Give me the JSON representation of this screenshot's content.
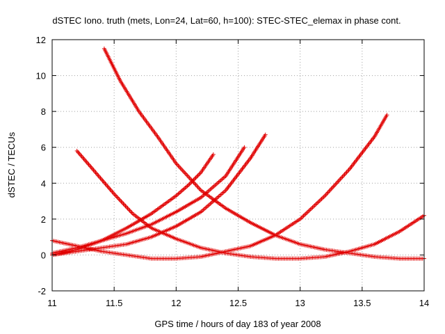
{
  "chart_data": {
    "type": "scatter",
    "title": "dSTEC Iono. truth (mets, Lon=24, Lat=60, h=100): STEC-STEC_elemax in phase cont.",
    "xlabel": "GPS time / hours of day 183 of year 2008",
    "ylabel": "dSTEC  / TECUs",
    "xlim": [
      11,
      14
    ],
    "ylim": [
      -2,
      12
    ],
    "xticks": [
      11,
      11.5,
      12,
      12.5,
      13,
      13.5,
      14
    ],
    "xtick_labels": [
      "11",
      "11.5",
      "12",
      "12.5",
      "13",
      "13.5",
      "14"
    ],
    "yticks": [
      -2,
      0,
      2,
      4,
      6,
      8,
      10,
      12
    ],
    "ytick_labels": [
      "-2",
      "0",
      "2",
      "4",
      "6",
      "8",
      "10",
      "12"
    ],
    "grid": true,
    "marker": "plus",
    "color": "#e00000",
    "series": [
      {
        "x": [
          11.42,
          11.55,
          11.7,
          11.85,
          12.0,
          12.2,
          12.4,
          12.6,
          12.8,
          13.0,
          13.2,
          13.4,
          13.6,
          13.8,
          14.0
        ],
        "y": [
          11.5,
          9.7,
          8.0,
          6.6,
          5.1,
          3.6,
          2.6,
          1.8,
          1.1,
          0.6,
          0.3,
          0.1,
          -0.1,
          -0.2,
          -0.2
        ]
      },
      {
        "x": [
          11.2,
          11.35,
          11.5,
          11.65,
          11.8,
          12.0,
          12.2,
          12.4,
          12.6,
          12.8,
          13.0,
          13.2,
          13.4,
          13.6,
          13.8,
          14.0
        ],
        "y": [
          5.8,
          4.6,
          3.4,
          2.3,
          1.5,
          0.9,
          0.4,
          0.1,
          -0.1,
          -0.2,
          -0.2,
          -0.1,
          0.2,
          0.6,
          1.3,
          2.2
        ]
      },
      {
        "x": [
          11.0,
          11.2,
          11.4,
          11.6,
          11.8,
          12.0,
          12.2,
          12.4,
          12.6,
          12.8,
          13.0,
          13.2,
          13.4,
          13.6,
          13.7
        ],
        "y": [
          0.8,
          0.5,
          0.2,
          0.0,
          -0.2,
          -0.2,
          -0.1,
          0.2,
          0.5,
          1.1,
          2.0,
          3.3,
          4.8,
          6.6,
          7.8
        ]
      },
      {
        "x": [
          11.0,
          11.2,
          11.4,
          11.6,
          11.8,
          12.0,
          12.1,
          12.2,
          12.3
        ],
        "y": [
          0.0,
          0.3,
          0.8,
          1.5,
          2.3,
          3.3,
          3.9,
          4.6,
          5.6
        ]
      },
      {
        "x": [
          11.0,
          11.2,
          11.4,
          11.6,
          11.8,
          12.0,
          12.2,
          12.4,
          12.55
        ],
        "y": [
          0.1,
          0.4,
          0.8,
          1.2,
          1.7,
          2.4,
          3.2,
          4.4,
          6.0
        ]
      },
      {
        "x": [
          11.0,
          11.2,
          11.4,
          11.6,
          11.8,
          12.0,
          12.2,
          12.4,
          12.6,
          12.72
        ],
        "y": [
          0.0,
          0.2,
          0.4,
          0.6,
          1.0,
          1.6,
          2.4,
          3.6,
          5.4,
          6.7
        ]
      }
    ]
  }
}
